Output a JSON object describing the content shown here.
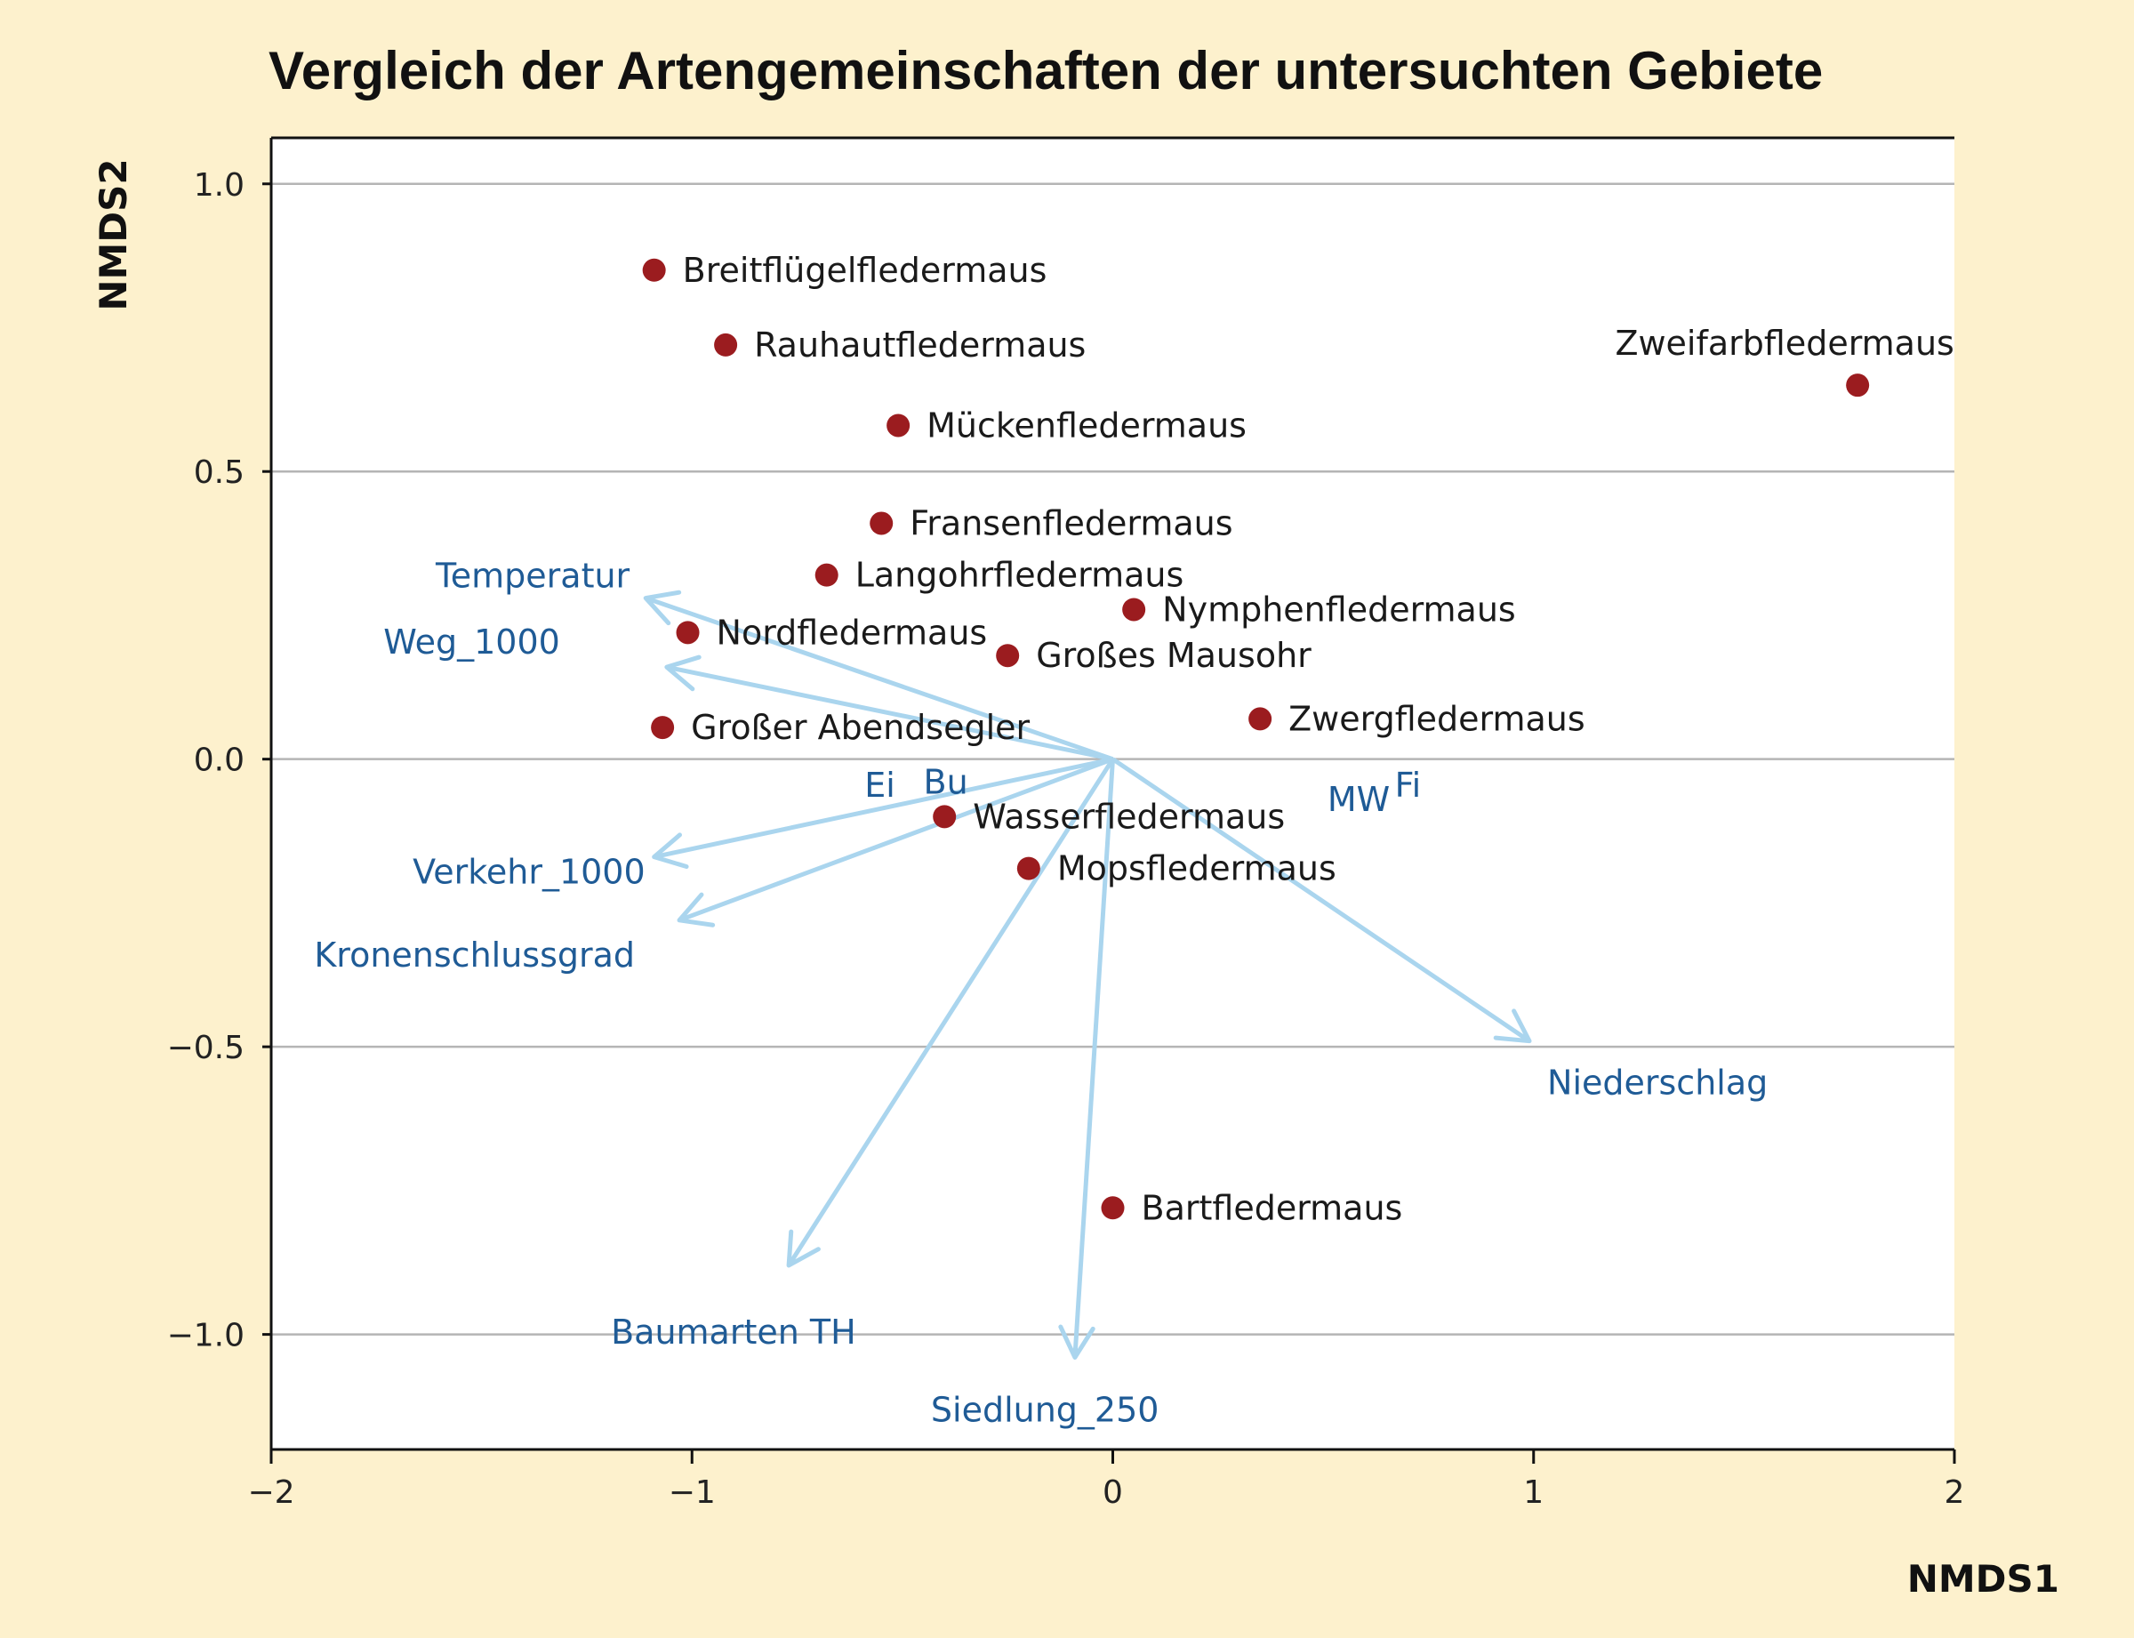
{
  "chart_data": {
    "type": "scatter",
    "title": "Vergleich der Artengemeinschaften der untersuchten Gebiete",
    "xlabel": "NMDS1",
    "ylabel": "NMDS2",
    "xlim": [
      -2,
      2
    ],
    "ylim": [
      -1.2,
      1.08
    ],
    "x_ticks": [
      -2,
      -1,
      0,
      1,
      2
    ],
    "x_tick_labels": [
      "−2",
      "−1",
      "0",
      "1",
      "2"
    ],
    "y_ticks": [
      1.0,
      0.5,
      0.0,
      -0.5,
      -1.0
    ],
    "y_tick_labels": [
      "1.0",
      "0.5",
      "0.0",
      "−0.5",
      "−1.0"
    ],
    "grid": "horizontal",
    "colors": {
      "point": "#9b1c1f",
      "arrow": "#aad5ee",
      "env_text": "#1f5b96",
      "background": "#fdf1cd",
      "plot_background": "#ffffff"
    },
    "species": [
      {
        "name": "Breitflügelfledermaus",
        "x": -1.09,
        "y": 0.85
      },
      {
        "name": "Rauhautfledermaus",
        "x": -0.92,
        "y": 0.72
      },
      {
        "name": "Zweifarbfledermaus",
        "x": 1.77,
        "y": 0.65,
        "label_position": "above-left"
      },
      {
        "name": "Mückenfledermaus",
        "x": -0.51,
        "y": 0.58
      },
      {
        "name": "Fransenfledermaus",
        "x": -0.55,
        "y": 0.41
      },
      {
        "name": "Langohrfledermaus",
        "x": -0.68,
        "y": 0.32
      },
      {
        "name": "Nymphenfledermaus",
        "x": 0.05,
        "y": 0.26
      },
      {
        "name": "Nordfledermaus",
        "x": -1.01,
        "y": 0.22
      },
      {
        "name": "Großes Mausohr",
        "x": -0.25,
        "y": 0.18
      },
      {
        "name": "Zwergfledermaus",
        "x": 0.35,
        "y": 0.07
      },
      {
        "name": "Großer Abendsegler",
        "x": -1.07,
        "y": 0.055
      },
      {
        "name": "Wasserfledermaus",
        "x": -0.4,
        "y": -0.1
      },
      {
        "name": "Mopsfledermaus",
        "x": -0.2,
        "y": -0.19
      },
      {
        "name": "Bartfledermaus",
        "x": 0.0,
        "y": -0.78
      }
    ],
    "environmental_vectors": [
      {
        "name": "Temperatur",
        "x": -1.11,
        "y": 0.28
      },
      {
        "name": "Weg_1000",
        "x": -1.06,
        "y": 0.16
      },
      {
        "name": "Verkehr_1000",
        "x": -1.09,
        "y": -0.17
      },
      {
        "name": "Kronenschlussgrad",
        "x": -1.03,
        "y": -0.28
      },
      {
        "name": "Baumarten TH",
        "x": -0.77,
        "y": -0.88
      },
      {
        "name": "Siedlung_250",
        "x": -0.09,
        "y": -1.04
      },
      {
        "name": "Niederschlag",
        "x": 0.99,
        "y": -0.49
      }
    ],
    "factor_labels": [
      {
        "name": "Ei",
        "x": -0.59,
        "y": -0.045
      },
      {
        "name": "Bu",
        "x": -0.45,
        "y": -0.04
      },
      {
        "name": "MW",
        "x": 0.51,
        "y": -0.07
      },
      {
        "name": "Fi",
        "x": 0.67,
        "y": -0.045
      }
    ]
  }
}
